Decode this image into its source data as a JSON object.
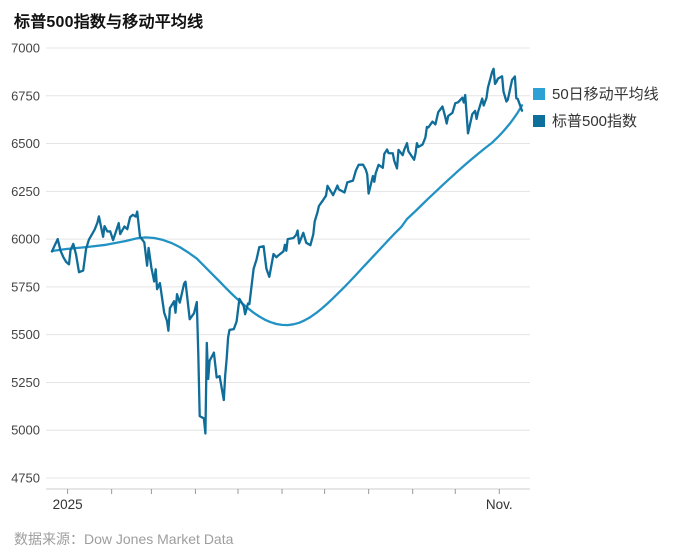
{
  "title": "标普500指数与移动平均线",
  "source_note": "数据来源：Dow Jones Market Data",
  "colors": {
    "ma_line": "#2292c4",
    "price_line": "#0f6d99",
    "grid": "#e4e4e4",
    "axis": "#cccccc",
    "tick": "#999999",
    "axis_label": "#444444"
  },
  "legend": [
    {
      "label": "50日移动平均线",
      "color": "#2da0d4"
    },
    {
      "label": "标普500指数",
      "color": "#0e6e9c"
    }
  ],
  "chart_data": {
    "type": "line",
    "title": "标普500指数与移动平均线",
    "ylabel": "",
    "xlabel": "",
    "ylim": [
      4750,
      7000
    ],
    "grid": "horizontal",
    "legend_position": "right",
    "x_unit": "day_of_year_2025",
    "y_ticks": [
      7000,
      6750,
      6500,
      6250,
      6000,
      5750,
      5500,
      5250,
      5000,
      4750
    ],
    "x_ticks": [
      {
        "day": 1,
        "label": "2025"
      },
      {
        "day": 32,
        "label": ""
      },
      {
        "day": 60,
        "label": ""
      },
      {
        "day": 91,
        "label": ""
      },
      {
        "day": 121,
        "label": ""
      },
      {
        "day": 152,
        "label": ""
      },
      {
        "day": 182,
        "label": ""
      },
      {
        "day": 213,
        "label": ""
      },
      {
        "day": 244,
        "label": ""
      },
      {
        "day": 274,
        "label": ""
      },
      {
        "day": 305,
        "label": "Nov."
      }
    ],
    "series": [
      {
        "name": "50日移动平均线",
        "color": "#2292c4",
        "points": [
          [
            -10,
            5938
          ],
          [
            0,
            5948
          ],
          [
            14,
            5958
          ],
          [
            28,
            5970
          ],
          [
            42,
            5990
          ],
          [
            50,
            6004
          ],
          [
            56,
            6009
          ],
          [
            62,
            6006
          ],
          [
            68,
            5996
          ],
          [
            74,
            5980
          ],
          [
            80,
            5958
          ],
          [
            86,
            5930
          ],
          [
            92,
            5898
          ],
          [
            96,
            5868
          ],
          [
            100,
            5838
          ],
          [
            104,
            5808
          ],
          [
            108,
            5778
          ],
          [
            112,
            5748
          ],
          [
            116,
            5718
          ],
          [
            120,
            5690
          ],
          [
            124,
            5663
          ],
          [
            128,
            5638
          ],
          [
            132,
            5615
          ],
          [
            136,
            5595
          ],
          [
            140,
            5578
          ],
          [
            144,
            5565
          ],
          [
            148,
            5556
          ],
          [
            152,
            5551
          ],
          [
            156,
            5550
          ],
          [
            160,
            5554
          ],
          [
            164,
            5562
          ],
          [
            168,
            5575
          ],
          [
            172,
            5592
          ],
          [
            176,
            5613
          ],
          [
            180,
            5637
          ],
          [
            184,
            5663
          ],
          [
            188,
            5691
          ],
          [
            192,
            5720
          ],
          [
            196,
            5750
          ],
          [
            200,
            5781
          ],
          [
            204,
            5812
          ],
          [
            208,
            5844
          ],
          [
            212,
            5876
          ],
          [
            216,
            5908
          ],
          [
            220,
            5940
          ],
          [
            224,
            5972
          ],
          [
            228,
            6003
          ],
          [
            232,
            6034
          ],
          [
            236,
            6064
          ],
          [
            240,
            6105
          ],
          [
            245,
            6140
          ],
          [
            250,
            6176
          ],
          [
            255,
            6212
          ],
          [
            260,
            6247
          ],
          [
            265,
            6282
          ],
          [
            270,
            6316
          ],
          [
            275,
            6350
          ],
          [
            280,
            6383
          ],
          [
            285,
            6415
          ],
          [
            290,
            6446
          ],
          [
            295,
            6476
          ],
          [
            300,
            6505
          ],
          [
            304,
            6534
          ],
          [
            308,
            6565
          ],
          [
            312,
            6600
          ],
          [
            315,
            6630
          ],
          [
            318,
            6662
          ],
          [
            321,
            6700
          ]
        ]
      },
      {
        "name": "标普500指数",
        "color": "#0f6d99",
        "points": [
          [
            -10,
            5935
          ],
          [
            -8,
            5968
          ],
          [
            -6,
            6000
          ],
          [
            -4,
            5940
          ],
          [
            -2,
            5905
          ],
          [
            0,
            5880
          ],
          [
            2,
            5868
          ],
          [
            3,
            5942
          ],
          [
            5,
            5975
          ],
          [
            7,
            5918
          ],
          [
            9,
            5827
          ],
          [
            12,
            5836
          ],
          [
            14,
            5950
          ],
          [
            16,
            5997
          ],
          [
            20,
            6049
          ],
          [
            22,
            6086
          ],
          [
            23,
            6119
          ],
          [
            26,
            6012
          ],
          [
            27,
            6068
          ],
          [
            29,
            6040
          ],
          [
            31,
            6041
          ],
          [
            33,
            5995
          ],
          [
            36,
            6061
          ],
          [
            37,
            6084
          ],
          [
            38,
            6026
          ],
          [
            41,
            6066
          ],
          [
            43,
            6052
          ],
          [
            45,
            6115
          ],
          [
            47,
            6127
          ],
          [
            49,
            6118
          ],
          [
            50,
            6144
          ],
          [
            52,
            6013
          ],
          [
            55,
            5983
          ],
          [
            57,
            5861
          ],
          [
            58,
            5954
          ],
          [
            60,
            5850
          ],
          [
            62,
            5778
          ],
          [
            63,
            5842
          ],
          [
            64,
            5738
          ],
          [
            66,
            5770
          ],
          [
            69,
            5615
          ],
          [
            71,
            5572
          ],
          [
            72,
            5521
          ],
          [
            73,
            5639
          ],
          [
            76,
            5675
          ],
          [
            77,
            5615
          ],
          [
            78,
            5712
          ],
          [
            80,
            5668
          ],
          [
            83,
            5767
          ],
          [
            84,
            5777
          ],
          [
            85,
            5712
          ],
          [
            87,
            5581
          ],
          [
            90,
            5612
          ],
          [
            92,
            5671
          ],
          [
            93,
            5396
          ],
          [
            94,
            5074
          ],
          [
            97,
            5062
          ],
          [
            98,
            4983
          ],
          [
            99,
            5457
          ],
          [
            100,
            5268
          ],
          [
            101,
            5363
          ],
          [
            104,
            5406
          ],
          [
            106,
            5276
          ],
          [
            108,
            5283
          ],
          [
            111,
            5158
          ],
          [
            112,
            5288
          ],
          [
            113,
            5376
          ],
          [
            114,
            5485
          ],
          [
            115,
            5525
          ],
          [
            118,
            5529
          ],
          [
            120,
            5569
          ],
          [
            122,
            5687
          ],
          [
            125,
            5650
          ],
          [
            126,
            5607
          ],
          [
            128,
            5663
          ],
          [
            129,
            5660
          ],
          [
            132,
            5844
          ],
          [
            134,
            5893
          ],
          [
            136,
            5958
          ],
          [
            139,
            5963
          ],
          [
            141,
            5845
          ],
          [
            143,
            5803
          ],
          [
            146,
            5922
          ],
          [
            148,
            5905
          ],
          [
            149,
            5912
          ],
          [
            153,
            5936
          ],
          [
            154,
            5970
          ],
          [
            155,
            5939
          ],
          [
            156,
            6000
          ],
          [
            160,
            6006
          ],
          [
            162,
            6022
          ],
          [
            163,
            6045
          ],
          [
            164,
            5977
          ],
          [
            167,
            6033
          ],
          [
            169,
            5981
          ],
          [
            172,
            5968
          ],
          [
            174,
            6025
          ],
          [
            175,
            6092
          ],
          [
            177,
            6141
          ],
          [
            178,
            6173
          ],
          [
            181,
            6205
          ],
          [
            183,
            6227
          ],
          [
            184,
            6279
          ],
          [
            188,
            6230
          ],
          [
            190,
            6263
          ],
          [
            191,
            6280
          ],
          [
            192,
            6260
          ],
          [
            196,
            6244
          ],
          [
            198,
            6297
          ],
          [
            202,
            6306
          ],
          [
            204,
            6359
          ],
          [
            206,
            6389
          ],
          [
            209,
            6390
          ],
          [
            211,
            6363
          ],
          [
            212,
            6339
          ],
          [
            213,
            6238
          ],
          [
            216,
            6330
          ],
          [
            217,
            6300
          ],
          [
            218,
            6345
          ],
          [
            220,
            6389
          ],
          [
            223,
            6373
          ],
          [
            224,
            6446
          ],
          [
            226,
            6469
          ],
          [
            227,
            6450
          ],
          [
            230,
            6449
          ],
          [
            231,
            6411
          ],
          [
            233,
            6370
          ],
          [
            234,
            6467
          ],
          [
            237,
            6439
          ],
          [
            238,
            6466
          ],
          [
            240,
            6502
          ],
          [
            241,
            6460
          ],
          [
            245,
            6415
          ],
          [
            246,
            6448
          ],
          [
            247,
            6502
          ],
          [
            248,
            6482
          ],
          [
            251,
            6495
          ],
          [
            253,
            6532
          ],
          [
            254,
            6587
          ],
          [
            255,
            6584
          ],
          [
            258,
            6615
          ],
          [
            260,
            6600
          ],
          [
            262,
            6664
          ],
          [
            265,
            6694
          ],
          [
            267,
            6638
          ],
          [
            268,
            6605
          ],
          [
            269,
            6644
          ],
          [
            272,
            6661
          ],
          [
            274,
            6711
          ],
          [
            276,
            6716
          ],
          [
            279,
            6740
          ],
          [
            280,
            6715
          ],
          [
            281,
            6754
          ],
          [
            283,
            6553
          ],
          [
            286,
            6654
          ],
          [
            288,
            6671
          ],
          [
            289,
            6629
          ],
          [
            290,
            6664
          ],
          [
            293,
            6735
          ],
          [
            294,
            6699
          ],
          [
            296,
            6739
          ],
          [
            297,
            6792
          ],
          [
            300,
            6876
          ],
          [
            301,
            6891
          ],
          [
            302,
            6812
          ],
          [
            303,
            6822
          ],
          [
            304,
            6840
          ],
          [
            307,
            6852
          ],
          [
            308,
            6772
          ],
          [
            310,
            6720
          ],
          [
            311,
            6729
          ],
          [
            314,
            6833
          ],
          [
            316,
            6851
          ],
          [
            317,
            6737
          ],
          [
            318,
            6734
          ],
          [
            321,
            6672
          ]
        ]
      }
    ]
  }
}
